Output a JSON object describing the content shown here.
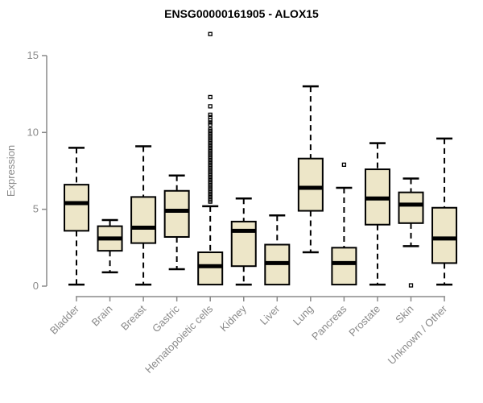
{
  "chart_data": {
    "type": "box",
    "title": "ENSG00000161905 - ALOX15",
    "xlabel": "",
    "ylabel": "Expression",
    "ylim": [
      0,
      15
    ],
    "yticks": [
      0,
      5,
      10,
      15
    ],
    "grid": false,
    "legend": "none",
    "colors": {
      "box_fill": "#ede6c8",
      "box_stroke": "#000000",
      "median_stroke": "#000000",
      "whisker_stroke": "#000000",
      "outlier_stroke": "#000000",
      "axis_color": "#8a8a8a",
      "label_color": "#8a8a8a",
      "title_color": "#000000"
    },
    "categories": [
      "Bladder",
      "Brain",
      "Breast",
      "Gastric",
      "Hematopoietic cells",
      "Kidney",
      "Liver",
      "Lung",
      "Pancreas",
      "Prostate",
      "Skin",
      "Unknown / Other"
    ],
    "series": [
      {
        "name": "Bladder",
        "min": 0.1,
        "q1": 3.6,
        "median": 5.4,
        "q3": 6.6,
        "max": 9.0,
        "outliers": []
      },
      {
        "name": "Brain",
        "min": 0.9,
        "q1": 2.3,
        "median": 3.1,
        "q3": 3.9,
        "max": 4.3,
        "outliers": []
      },
      {
        "name": "Breast",
        "min": 0.1,
        "q1": 2.8,
        "median": 3.8,
        "q3": 5.8,
        "max": 9.1,
        "outliers": []
      },
      {
        "name": "Gastric",
        "min": 1.1,
        "q1": 3.2,
        "median": 4.9,
        "q3": 6.2,
        "max": 7.2,
        "outliers": []
      },
      {
        "name": "Hematopoietic cells",
        "min": 0.1,
        "q1": 0.1,
        "median": 1.3,
        "q3": 2.2,
        "max": 5.2,
        "outliers": [
          5.5,
          5.6,
          5.7,
          5.8,
          5.9,
          6.0,
          6.1,
          6.2,
          6.3,
          6.4,
          6.5,
          6.6,
          6.7,
          6.8,
          6.9,
          7.0,
          7.1,
          7.2,
          7.3,
          7.4,
          7.5,
          7.6,
          7.7,
          7.8,
          7.9,
          8.0,
          8.1,
          8.2,
          8.3,
          8.4,
          8.5,
          8.6,
          8.7,
          8.8,
          8.9,
          9.0,
          9.1,
          9.2,
          9.3,
          9.4,
          9.5,
          9.6,
          9.7,
          9.8,
          9.9,
          10.0,
          10.1,
          10.2,
          10.5,
          10.65,
          10.8,
          11.0,
          11.15,
          11.7,
          12.3,
          16.4
        ]
      },
      {
        "name": "Kidney",
        "min": 0.1,
        "q1": 1.3,
        "median": 3.6,
        "q3": 4.2,
        "max": 5.7,
        "outliers": []
      },
      {
        "name": "Liver",
        "min": 0.1,
        "q1": 0.1,
        "median": 1.5,
        "q3": 2.7,
        "max": 4.6,
        "outliers": []
      },
      {
        "name": "Lung",
        "min": 2.2,
        "q1": 4.9,
        "median": 6.4,
        "q3": 8.3,
        "max": 13.0,
        "outliers": []
      },
      {
        "name": "Pancreas",
        "min": 0.1,
        "q1": 0.1,
        "median": 1.5,
        "q3": 2.5,
        "max": 6.4,
        "outliers": [
          7.9
        ]
      },
      {
        "name": "Prostate",
        "min": 0.1,
        "q1": 4.0,
        "median": 5.7,
        "q3": 7.6,
        "max": 9.3,
        "outliers": []
      },
      {
        "name": "Skin",
        "min": 2.6,
        "q1": 4.1,
        "median": 5.3,
        "q3": 6.1,
        "max": 7.0,
        "outliers": [
          0.05
        ]
      },
      {
        "name": "Unknown / Other",
        "min": 0.1,
        "q1": 1.5,
        "median": 3.1,
        "q3": 5.1,
        "max": 9.6,
        "outliers": []
      }
    ]
  }
}
